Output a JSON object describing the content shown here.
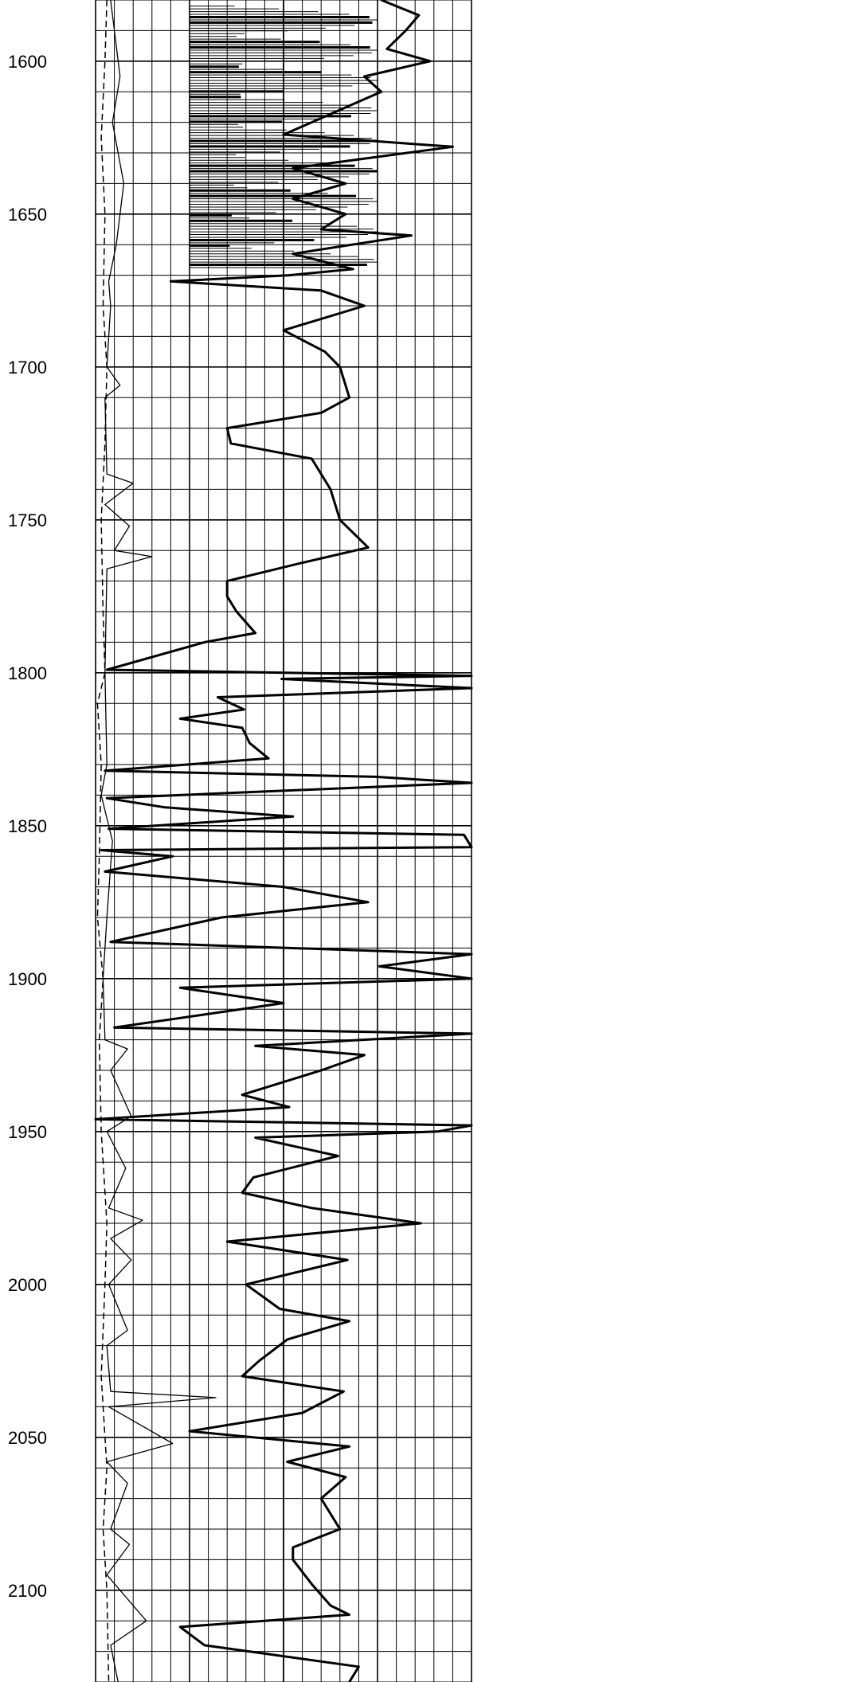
{
  "chart_data": {
    "type": "line",
    "title": "",
    "xlabel": "",
    "ylabel": "",
    "depth_axis": {
      "ticks": [
        1600,
        1650,
        1700,
        1750,
        1800,
        1850,
        1900,
        1950,
        2000,
        2050,
        2100
      ],
      "tick_labels": [
        "1600",
        "1650",
        "1700",
        "1750",
        "1800",
        "1850",
        "1900",
        "1950",
        "2000",
        "2050",
        "2100"
      ],
      "range": [
        1580,
        2130
      ],
      "direction": "downward",
      "minor_step": 10
    },
    "tracks": 2,
    "grid": true,
    "colors": {
      "background": "#ffffff",
      "ink": "#000000"
    },
    "series": [
      {
        "style": "thin",
        "x_min": 0,
        "x_max": 10,
        "wrap": false,
        "points": [
          [
            1580,
            0.8
          ],
          [
            1605,
            1.3
          ],
          [
            1620,
            0.9
          ],
          [
            1640,
            1.5
          ],
          [
            1660,
            1.1
          ],
          [
            1672,
            0.7
          ],
          [
            1680,
            0.8
          ],
          [
            1700,
            0.6
          ],
          [
            1706,
            1.3
          ],
          [
            1710,
            0.5
          ],
          [
            1735,
            0.6
          ],
          [
            1738,
            2.0
          ],
          [
            1745,
            0.5
          ],
          [
            1752,
            1.8
          ],
          [
            1760,
            1.0
          ],
          [
            1762,
            3.0
          ],
          [
            1766,
            0.6
          ],
          [
            1800,
            0.5
          ],
          [
            1830,
            0.6
          ],
          [
            1840,
            0.3
          ],
          [
            1855,
            0.9
          ],
          [
            1880,
            0.6
          ],
          [
            1900,
            0.4
          ],
          [
            1920,
            0.5
          ],
          [
            1923,
            1.7
          ],
          [
            1930,
            0.8
          ],
          [
            1945,
            1.9
          ],
          [
            1950,
            0.6
          ],
          [
            1962,
            1.6
          ],
          [
            1975,
            0.7
          ],
          [
            1979,
            2.5
          ],
          [
            1985,
            0.8
          ],
          [
            1992,
            1.9
          ],
          [
            2000,
            0.7
          ],
          [
            2015,
            1.7
          ],
          [
            2020,
            0.6
          ],
          [
            2035,
            0.8
          ],
          [
            2037,
            6.4
          ],
          [
            2040,
            0.7
          ],
          [
            2052,
            4.1
          ],
          [
            2058,
            0.6
          ],
          [
            2065,
            1.7
          ],
          [
            2080,
            0.8
          ],
          [
            2085,
            1.8
          ],
          [
            2095,
            0.6
          ],
          [
            2110,
            2.7
          ],
          [
            2118,
            0.8
          ],
          [
            2130,
            1.2
          ]
        ]
      },
      {
        "style": "thick",
        "x_min": 0,
        "x_max": 20,
        "wrap": true,
        "points": [
          [
            1580,
            15.2
          ],
          [
            1585,
            17.2
          ],
          [
            1590,
            16.5
          ],
          [
            1596,
            15.5
          ],
          [
            1600,
            17.8
          ],
          [
            1605,
            14.3
          ],
          [
            1610,
            15.2
          ],
          [
            1620,
            11.5
          ],
          [
            1624,
            10.0
          ],
          [
            1628,
            19.0
          ],
          [
            1635,
            10.5
          ],
          [
            1640,
            13.3
          ],
          [
            1645,
            10.5
          ],
          [
            1650,
            13.3
          ],
          [
            1655,
            12.0
          ],
          [
            1657,
            16.8
          ],
          [
            1663,
            10.5
          ],
          [
            1668,
            13.7
          ],
          [
            1670,
            10.3
          ],
          [
            1672,
            4.0
          ],
          [
            1675,
            12.0
          ],
          [
            1680,
            14.3
          ],
          [
            1688,
            10.0
          ],
          [
            1695,
            12.2
          ],
          [
            1700,
            13.0
          ],
          [
            1710,
            13.5
          ],
          [
            1715,
            12.0
          ],
          [
            1720,
            7.0
          ],
          [
            1725,
            7.2
          ],
          [
            1730,
            11.5
          ],
          [
            1740,
            12.5
          ],
          [
            1750,
            13.0
          ],
          [
            1759,
            14.5
          ],
          [
            1764,
            11.0
          ],
          [
            1770,
            7.0
          ],
          [
            1775,
            7.0
          ],
          [
            1780,
            7.5
          ],
          [
            1787,
            8.5
          ],
          [
            1790,
            5.8
          ],
          [
            1799,
            0.6
          ],
          [
            1801,
            20.0
          ],
          [
            1802,
            9.9
          ],
          [
            1805,
            20.0
          ],
          [
            1808,
            6.5
          ],
          [
            1812,
            7.9
          ],
          [
            1815,
            4.5
          ],
          [
            1818,
            7.8
          ],
          [
            1823,
            8.2
          ],
          [
            1828,
            9.2
          ],
          [
            1832,
            0.5
          ],
          [
            1834,
            14.9
          ],
          [
            1836,
            20.0
          ],
          [
            1841,
            0.6
          ],
          [
            1844,
            3.7
          ],
          [
            1847,
            10.5
          ],
          [
            1851,
            0.7
          ],
          [
            1853,
            19.6
          ],
          [
            1857,
            20.0
          ],
          [
            1858,
            0.3
          ],
          [
            1860,
            4.1
          ],
          [
            1865,
            0.5
          ],
          [
            1870,
            10.0
          ],
          [
            1875,
            14.5
          ],
          [
            1880,
            6.7
          ],
          [
            1888,
            0.8
          ],
          [
            1892,
            20.0
          ],
          [
            1896,
            15.1
          ],
          [
            1900,
            20.0
          ],
          [
            1903,
            4.5
          ],
          [
            1908,
            10.0
          ],
          [
            1916,
            1.0
          ],
          [
            1918,
            20.0
          ],
          [
            1922,
            8.5
          ],
          [
            1925,
            14.3
          ],
          [
            1930,
            12.0
          ],
          [
            1938,
            7.8
          ],
          [
            1942,
            10.3
          ],
          [
            1946,
            0.0
          ],
          [
            1948,
            20.0
          ],
          [
            1950,
            18.2
          ],
          [
            1952,
            8.5
          ],
          [
            1958,
            12.9
          ],
          [
            1965,
            8.4
          ],
          [
            1970,
            7.8
          ],
          [
            1975,
            11.5
          ],
          [
            1980,
            17.3
          ],
          [
            1986,
            7.0
          ],
          [
            1992,
            13.4
          ],
          [
            2000,
            8.0
          ],
          [
            2008,
            9.8
          ],
          [
            2012,
            13.5
          ],
          [
            2018,
            10.2
          ],
          [
            2025,
            8.7
          ],
          [
            2030,
            7.8
          ],
          [
            2035,
            13.2
          ],
          [
            2042,
            11.0
          ],
          [
            2048,
            5.0
          ],
          [
            2053,
            13.5
          ],
          [
            2058,
            10.2
          ],
          [
            2063,
            13.3
          ],
          [
            2070,
            12.0
          ],
          [
            2080,
            13.0
          ],
          [
            2086,
            10.5
          ],
          [
            2090,
            10.5
          ],
          [
            2098,
            11.5
          ],
          [
            2105,
            12.5
          ],
          [
            2108,
            13.5
          ],
          [
            2112,
            4.5
          ],
          [
            2118,
            5.8
          ],
          [
            2125,
            14.0
          ],
          [
            2130,
            13.5
          ]
        ]
      },
      {
        "style": "dashed",
        "x_min": 0,
        "x_max": 10,
        "wrap": false,
        "points": [
          [
            1580,
            0.6
          ],
          [
            1600,
            0.5
          ],
          [
            1625,
            0.3
          ],
          [
            1650,
            0.5
          ],
          [
            1680,
            0.4
          ],
          [
            1700,
            0.6
          ],
          [
            1725,
            0.5
          ],
          [
            1750,
            0.3
          ],
          [
            1780,
            0.4
          ],
          [
            1800,
            0.5
          ],
          [
            1810,
            0.1
          ],
          [
            1830,
            0.3
          ],
          [
            1860,
            0.2
          ],
          [
            1880,
            0.1
          ],
          [
            1900,
            0.4
          ],
          [
            1920,
            0.2
          ],
          [
            1950,
            0.3
          ],
          [
            1980,
            0.6
          ],
          [
            2000,
            0.5
          ],
          [
            2030,
            0.3
          ],
          [
            2060,
            0.6
          ],
          [
            2080,
            0.4
          ],
          [
            2100,
            0.6
          ],
          [
            2130,
            0.7
          ]
        ]
      }
    ],
    "laminated_zone": {
      "top": 1582,
      "bottom": 1668
    }
  }
}
